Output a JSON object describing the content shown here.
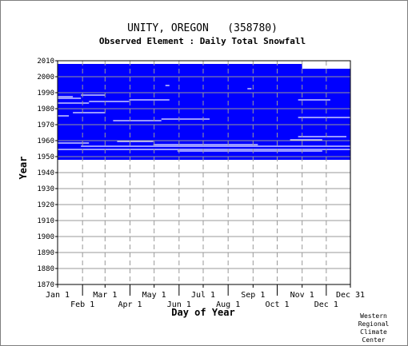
{
  "chart_data": {
    "type": "heatmap",
    "title": "UNITY, OREGON   (358780)",
    "subtitle": "Observed Element : Daily Total Snowfall",
    "xlabel": "Day of Year",
    "ylabel": "Year",
    "xlim": [
      1,
      365
    ],
    "ylim": [
      1870,
      2010
    ],
    "x_ticks_top": [
      {
        "label": "Jan 1",
        "day": 1
      },
      {
        "label": "Mar 1",
        "day": 60
      },
      {
        "label": "May 1",
        "day": 121
      },
      {
        "label": "Jul 1",
        "day": 182
      },
      {
        "label": "Sep 1",
        "day": 244
      },
      {
        "label": "Nov 1",
        "day": 305
      },
      {
        "label": "Dec 31",
        "day": 365
      }
    ],
    "x_ticks_bottom": [
      {
        "label": "Feb 1",
        "day": 32
      },
      {
        "label": "Apr 1",
        "day": 91
      },
      {
        "label": "Jun 1",
        "day": 152
      },
      {
        "label": "Aug 1",
        "day": 213
      },
      {
        "label": "Oct 1",
        "day": 274
      },
      {
        "label": "Dec 1",
        "day": 335
      }
    ],
    "y_ticks": [
      "1870",
      "1880",
      "1890",
      "1900",
      "1910",
      "1920",
      "1930",
      "1940",
      "1950",
      "1960",
      "1970",
      "1980",
      "1990",
      "2000",
      "2010"
    ],
    "grid": true,
    "colors": {
      "observed": "#0000ff",
      "grid": "#999999",
      "frame": "#000000"
    },
    "observed_span": {
      "first_year": 1948,
      "last_year": 2007,
      "partial_last_year_through_day": 305
    },
    "observed_blocks": [
      {
        "year_start": 1948,
        "year_end": 2004,
        "day_start": 1,
        "day_end": 365
      },
      {
        "year_start": 2005,
        "year_end": 2007,
        "day_start": 1,
        "day_end": 305
      }
    ],
    "missing_segments": [
      {
        "year": 1954,
        "day_start": 1,
        "day_end": 365
      },
      {
        "year": 1956,
        "day_start": 30,
        "day_end": 365
      },
      {
        "year": 1957,
        "day_start": 120,
        "day_end": 250
      },
      {
        "year": 1953,
        "day_start": 150,
        "day_end": 330
      },
      {
        "year": 1958,
        "day_start": 1,
        "day_end": 40
      },
      {
        "year": 1959,
        "day_start": 75,
        "day_end": 120
      },
      {
        "year": 1960,
        "day_start": 290,
        "day_end": 330
      },
      {
        "year": 1962,
        "day_start": 300,
        "day_end": 360
      },
      {
        "year": 1972,
        "day_start": 70,
        "day_end": 130
      },
      {
        "year": 1973,
        "day_start": 130,
        "day_end": 190
      },
      {
        "year": 1974,
        "day_start": 300,
        "day_end": 365
      },
      {
        "year": 1975,
        "day_start": 1,
        "day_end": 15
      },
      {
        "year": 1977,
        "day_start": 20,
        "day_end": 60
      },
      {
        "year": 1983,
        "day_start": 1,
        "day_end": 40
      },
      {
        "year": 1984,
        "day_start": 40,
        "day_end": 90
      },
      {
        "year": 1985,
        "day_start": 90,
        "day_end": 140
      },
      {
        "year": 1985,
        "day_start": 300,
        "day_end": 340
      },
      {
        "year": 1986,
        "day_start": 1,
        "day_end": 30
      },
      {
        "year": 1987,
        "day_start": 1,
        "day_end": 20
      },
      {
        "year": 1988,
        "day_start": 30,
        "day_end": 60
      },
      {
        "year": 1992,
        "day_start": 237,
        "day_end": 242
      },
      {
        "year": 1994,
        "day_start": 135,
        "day_end": 140
      }
    ]
  },
  "credit": [
    "Western",
    "Regional",
    "Climate",
    "Center"
  ]
}
